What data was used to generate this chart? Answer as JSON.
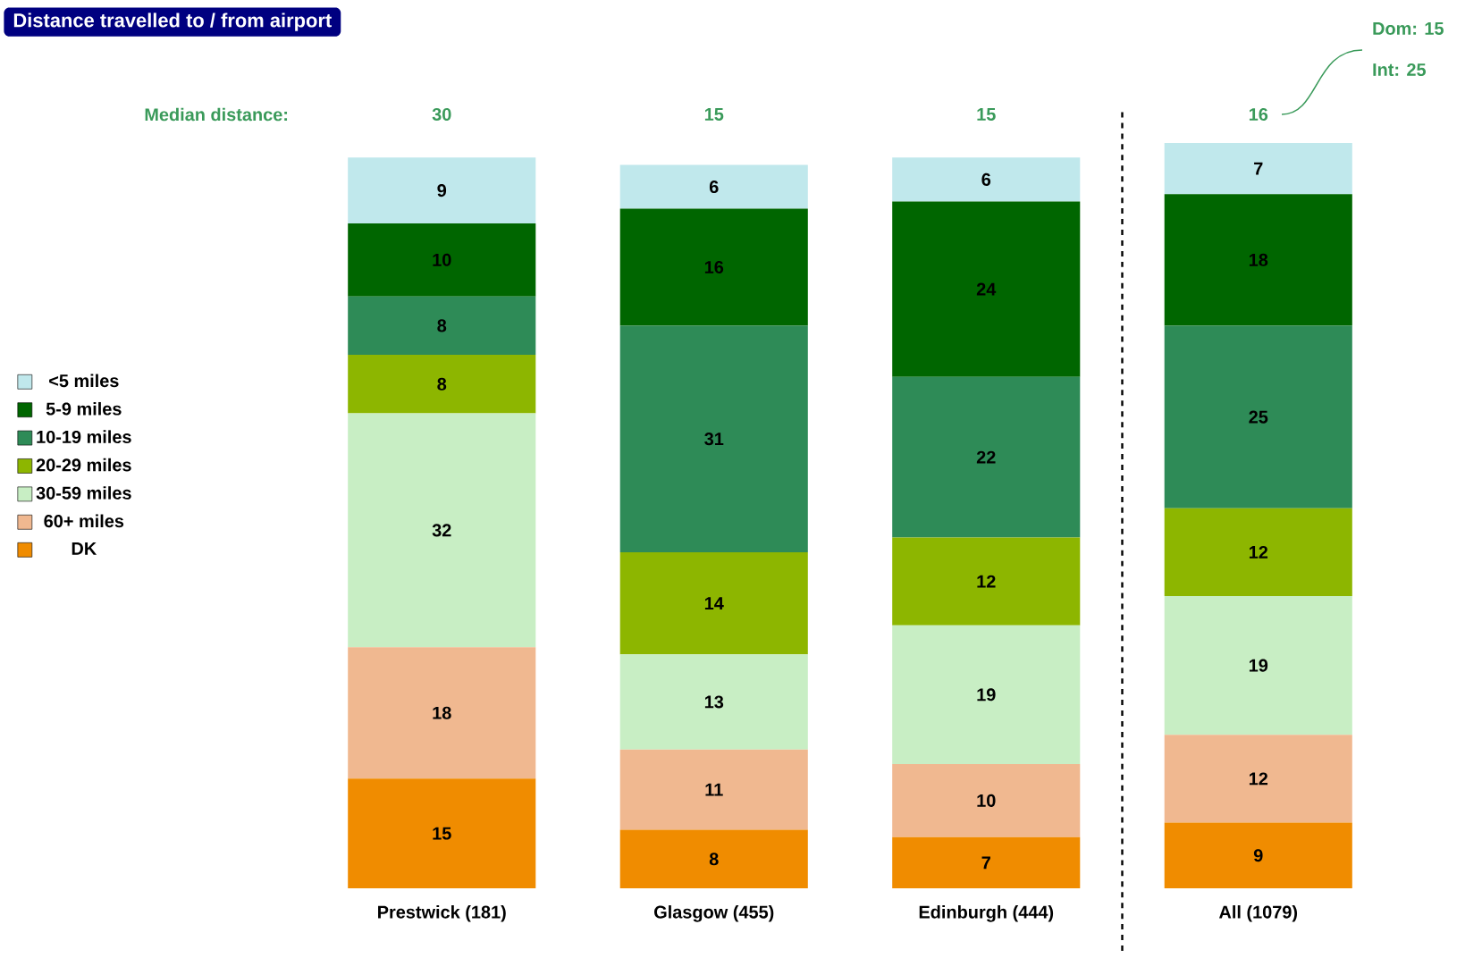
{
  "chart_data": {
    "type": "bar",
    "stacked": true,
    "title": "Distance travelled to / from airport",
    "categories": [
      "Prestwick (181)",
      "Glasgow (455)",
      "Edinburgh (444)",
      "All (1079)"
    ],
    "series": [
      {
        "name": "DK",
        "color": "#f08c00",
        "values": [
          15,
          8,
          7,
          9
        ]
      },
      {
        "name": "60+ miles",
        "color": "#f0b890",
        "values": [
          18,
          11,
          10,
          12
        ]
      },
      {
        "name": "30-59 miles",
        "color": "#c8eec4",
        "values": [
          32,
          13,
          19,
          19
        ]
      },
      {
        "name": "20-29 miles",
        "color": "#8db600",
        "values": [
          8,
          14,
          12,
          12
        ]
      },
      {
        "name": "10-19 miles",
        "color": "#2e8b57",
        "values": [
          8,
          31,
          22,
          25
        ]
      },
      {
        "name": "5-9 miles",
        "color": "#006600",
        "values": [
          10,
          16,
          24,
          18
        ]
      },
      {
        "name": "<5 miles",
        "color": "#c0e8ec",
        "values": [
          9,
          6,
          6,
          7
        ]
      }
    ],
    "data_labels": true,
    "legend": "left",
    "annotations": [
      "Median distance:",
      "30",
      "15",
      "15",
      "16",
      "Dom: 15",
      "Int: 25"
    ]
  }
}
